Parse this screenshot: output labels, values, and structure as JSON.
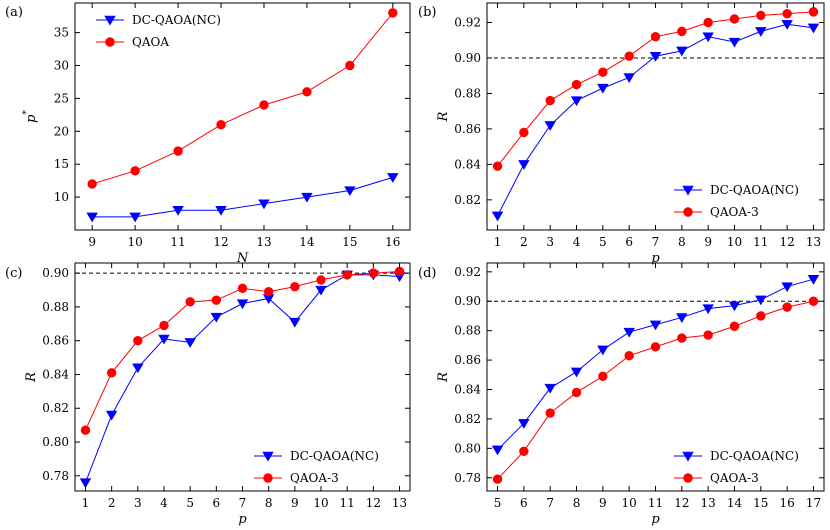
{
  "colors": {
    "dc": "#0000ff",
    "qaoa": "#ff0000",
    "ref": "#000000"
  },
  "chart_data": [
    {
      "type": "line",
      "panel_label": "(a)",
      "xlabel": "N",
      "ylabel": "p",
      "ylabel_sup": "*",
      "x": [
        9,
        10,
        11,
        12,
        13,
        14,
        15,
        16
      ],
      "xlim": [
        8.6,
        16.4
      ],
      "ylim": [
        5,
        39.5
      ],
      "xticks": [
        9,
        10,
        11,
        12,
        13,
        14,
        15,
        16
      ],
      "yticks": [
        10,
        15,
        20,
        25,
        30,
        35
      ],
      "legend_position": "top-left",
      "series": [
        {
          "name": "DC-QAOA(NC)",
          "color": "#0000ff",
          "marker": "triangle-down",
          "values": [
            7,
            7,
            8,
            8,
            9,
            10,
            11,
            13
          ]
        },
        {
          "name": "QAOA",
          "color": "#ff0000",
          "marker": "circle",
          "values": [
            12,
            14,
            17,
            21,
            24,
            26,
            30,
            38
          ]
        }
      ]
    },
    {
      "type": "line",
      "panel_label": "(b)",
      "xlabel": "p",
      "ylabel": "R",
      "x": [
        1,
        2,
        3,
        4,
        5,
        6,
        7,
        8,
        9,
        10,
        11,
        12,
        13
      ],
      "xlim": [
        0.6,
        13.4
      ],
      "ylim": [
        0.803,
        0.931
      ],
      "xticks": [
        1,
        2,
        3,
        4,
        5,
        6,
        7,
        8,
        9,
        10,
        11,
        12,
        13
      ],
      "yticks": [
        0.82,
        0.84,
        0.86,
        0.88,
        0.9,
        0.92
      ],
      "ref_line": 0.9,
      "legend_position": "bottom-right",
      "series": [
        {
          "name": "DC-QAOA(NC)",
          "color": "#0000ff",
          "marker": "triangle-down",
          "values": [
            0.811,
            0.84,
            0.862,
            0.876,
            0.883,
            0.889,
            0.901,
            0.904,
            0.912,
            0.909,
            0.915,
            0.919,
            0.917
          ]
        },
        {
          "name": "QAOA-3",
          "color": "#ff0000",
          "marker": "circle",
          "values": [
            0.839,
            0.858,
            0.876,
            0.885,
            0.892,
            0.901,
            0.912,
            0.915,
            0.92,
            0.922,
            0.924,
            0.925,
            0.926
          ]
        }
      ]
    },
    {
      "type": "line",
      "panel_label": "(c)",
      "xlabel": "p",
      "ylabel": "R",
      "x": [
        1,
        2,
        3,
        4,
        5,
        6,
        7,
        8,
        9,
        10,
        11,
        12,
        13
      ],
      "xlim": [
        0.6,
        13.4
      ],
      "ylim": [
        0.771,
        0.906
      ],
      "xticks": [
        1,
        2,
        3,
        4,
        5,
        6,
        7,
        8,
        9,
        10,
        11,
        12,
        13
      ],
      "yticks": [
        0.78,
        0.8,
        0.82,
        0.84,
        0.86,
        0.88,
        0.9
      ],
      "ref_line": 0.9,
      "legend_position": "bottom-right",
      "series": [
        {
          "name": "DC-QAOA(NC)",
          "color": "#0000ff",
          "marker": "triangle-down",
          "values": [
            0.776,
            0.816,
            0.844,
            0.861,
            0.859,
            0.874,
            0.882,
            0.885,
            0.871,
            0.89,
            0.899,
            0.899,
            0.898
          ]
        },
        {
          "name": "QAOA-3",
          "color": "#ff0000",
          "marker": "circle",
          "values": [
            0.807,
            0.841,
            0.86,
            0.869,
            0.883,
            0.884,
            0.891,
            0.889,
            0.892,
            0.896,
            0.899,
            0.9,
            0.901
          ]
        }
      ]
    },
    {
      "type": "line",
      "panel_label": "(d)",
      "xlabel": "p",
      "ylabel": "R",
      "x": [
        5,
        6,
        7,
        8,
        9,
        10,
        11,
        12,
        13,
        14,
        15,
        16,
        17
      ],
      "xlim": [
        4.6,
        17.4
      ],
      "ylim": [
        0.771,
        0.926
      ],
      "xticks": [
        5,
        6,
        7,
        8,
        9,
        10,
        11,
        12,
        13,
        14,
        15,
        16,
        17
      ],
      "yticks": [
        0.78,
        0.8,
        0.82,
        0.84,
        0.86,
        0.88,
        0.9,
        0.92
      ],
      "ref_line": 0.9,
      "legend_position": "bottom-right",
      "series": [
        {
          "name": "DC-QAOA(NC)",
          "color": "#0000ff",
          "marker": "triangle-down",
          "values": [
            0.799,
            0.817,
            0.841,
            0.852,
            0.867,
            0.879,
            0.884,
            0.889,
            0.895,
            0.897,
            0.901,
            0.91,
            0.915
          ]
        },
        {
          "name": "QAOA-3",
          "color": "#ff0000",
          "marker": "circle",
          "values": [
            0.779,
            0.798,
            0.824,
            0.838,
            0.849,
            0.863,
            0.869,
            0.875,
            0.877,
            0.883,
            0.89,
            0.896,
            0.9
          ]
        }
      ]
    }
  ]
}
